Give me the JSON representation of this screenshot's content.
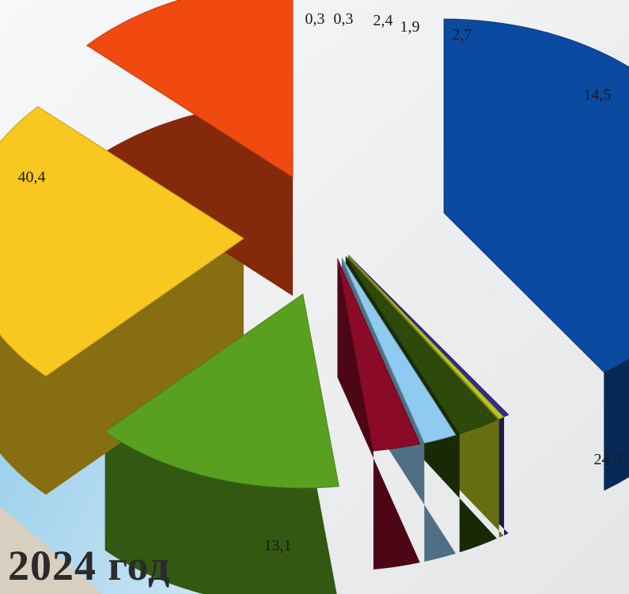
{
  "caption": "2024 год",
  "chart_data": {
    "type": "pie",
    "title": "",
    "slices": [
      {
        "label": "40,4",
        "value": 40.4,
        "color": "#0a4aa0"
      },
      {
        "label": "0,3",
        "value": 0.3,
        "color": "#3a2a8a"
      },
      {
        "label": "0,3",
        "value": 0.3,
        "color": "#b8c820"
      },
      {
        "label": "2,4",
        "value": 2.4,
        "color": "#2e4a0a"
      },
      {
        "label": "1,9",
        "value": 1.9,
        "color": "#8fcaf0"
      },
      {
        "label": "2,7",
        "value": 2.7,
        "color": "#8a0a28"
      },
      {
        "label": "14,5",
        "value": 14.5,
        "color": "#5aa020"
      },
      {
        "label": "24,5",
        "value": 24.5,
        "color": "#f8c820"
      },
      {
        "label": "13,1",
        "value": 13.1,
        "color": "#f04a10"
      }
    ],
    "legend": "none"
  }
}
